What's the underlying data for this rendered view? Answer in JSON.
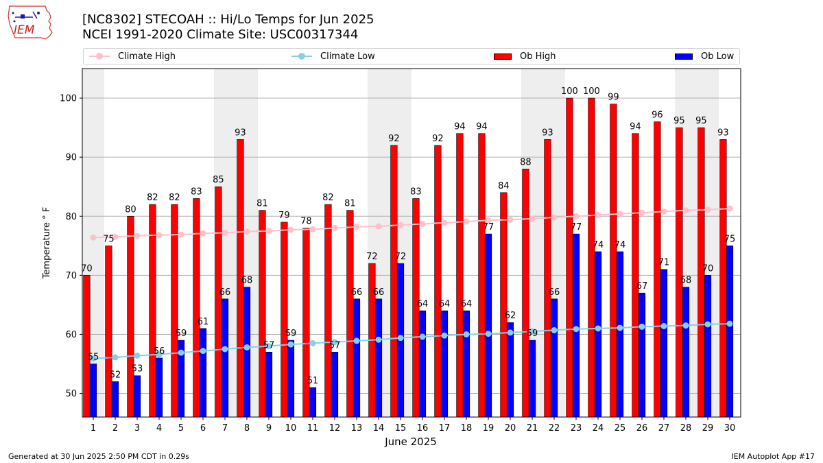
{
  "header": {
    "title_line1": "[NC8302] STECOAH :: Hi/Lo Temps for Jun 2025",
    "title_line2": "NCEI 1991-2020 Climate Site: USC00317344"
  },
  "logo": {
    "text": "IEM"
  },
  "footer": {
    "generated": "Generated at 30 Jun 2025 2:50 PM CDT in 0.29s",
    "app": "IEM Autoplot App #17"
  },
  "colors": {
    "ob_high": "#ff0000",
    "ob_low": "#0000ff",
    "climate_high": "#ffc0cb",
    "climate_low": "#87ceeb",
    "weekend_shade": "#eeeeee"
  },
  "chart_data": {
    "type": "bar",
    "xlabel": "June 2025",
    "ylabel": "Temperature ° F",
    "ylim": [
      46,
      105
    ],
    "yticks": [
      50,
      60,
      70,
      80,
      90,
      100
    ],
    "grid": "horizontal",
    "legend_position": "top",
    "categories": [
      "1",
      "2",
      "3",
      "4",
      "5",
      "6",
      "7",
      "8",
      "9",
      "10",
      "11",
      "12",
      "13",
      "14",
      "15",
      "16",
      "17",
      "18",
      "19",
      "20",
      "21",
      "22",
      "23",
      "24",
      "25",
      "26",
      "27",
      "28",
      "29",
      "30"
    ],
    "shaded_days": [
      1,
      7,
      8,
      14,
      15,
      21,
      22,
      28,
      29
    ],
    "series": [
      {
        "name": "Ob High",
        "type": "bar",
        "values": [
          70,
          75,
          80,
          82,
          82,
          83,
          85,
          93,
          81,
          79,
          78,
          82,
          81,
          72,
          92,
          83,
          92,
          94,
          94,
          84,
          88,
          93,
          100,
          100,
          99,
          94,
          96,
          95,
          95,
          93
        ]
      },
      {
        "name": "Ob Low",
        "type": "bar",
        "values": [
          55,
          52,
          53,
          56,
          59,
          61,
          66,
          68,
          57,
          59,
          51,
          57,
          66,
          66,
          72,
          64,
          64,
          64,
          77,
          62,
          59,
          66,
          77,
          74,
          74,
          67,
          71,
          68,
          70,
          75
        ]
      },
      {
        "name": "Climate High",
        "type": "line",
        "values": [
          76.4,
          76.5,
          76.7,
          76.8,
          76.9,
          77.1,
          77.2,
          77.4,
          77.5,
          77.7,
          77.8,
          78.0,
          78.2,
          78.3,
          78.5,
          78.7,
          78.9,
          79.1,
          79.3,
          79.4,
          79.6,
          79.8,
          80.0,
          80.2,
          80.4,
          80.6,
          80.8,
          81.0,
          81.1,
          81.3
        ]
      },
      {
        "name": "Climate Low",
        "type": "line",
        "values": [
          55.9,
          56.1,
          56.4,
          56.6,
          56.9,
          57.2,
          57.5,
          57.8,
          58.0,
          58.3,
          58.5,
          58.7,
          58.9,
          59.1,
          59.4,
          59.6,
          59.8,
          60.0,
          60.1,
          60.3,
          60.5,
          60.7,
          60.9,
          61.0,
          61.1,
          61.3,
          61.4,
          61.5,
          61.7,
          61.8
        ]
      }
    ],
    "legend": [
      "Climate High",
      "Climate Low",
      "Ob High",
      "Ob Low"
    ]
  }
}
